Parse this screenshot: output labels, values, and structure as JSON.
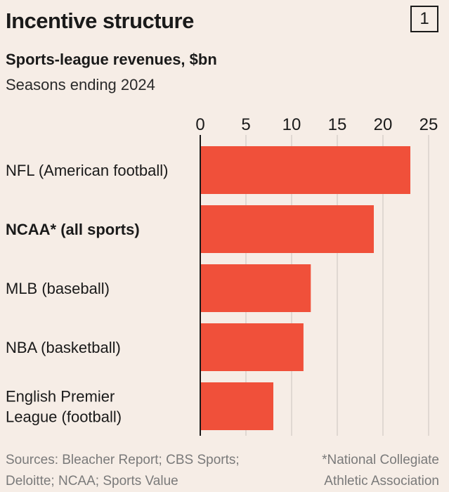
{
  "header": {
    "title": "Incentive structure",
    "badge": "1",
    "subtitle": "Sports-league revenues, $bn",
    "subsubtitle": "Seasons ending 2024"
  },
  "footer": {
    "sources_line1": "Sources: Bleacher Report; CBS Sports;",
    "sources_line2": "Deloitte; NCAA; Sports Value",
    "note_line1": "*National Collegiate",
    "note_line2": "Athletic Association"
  },
  "colors": {
    "bar": "#f0503a",
    "grid": "#c9c4bf",
    "axis": "#1a1a1a",
    "background": "#f6ede6"
  },
  "chart_data": {
    "type": "bar",
    "orientation": "horizontal",
    "categories": [
      [
        "NFL (American football)"
      ],
      [
        "NCAA* (all sports)"
      ],
      [
        "MLB (baseball)"
      ],
      [
        "NBA (basketball)"
      ],
      [
        "English Premier",
        "League (football)"
      ]
    ],
    "bold_categories": [
      1
    ],
    "values": [
      23.0,
      19.0,
      12.1,
      11.3,
      8.0
    ],
    "xlim": [
      0,
      25
    ],
    "xticks": [
      0,
      5,
      10,
      15,
      20,
      25
    ],
    "grid": true,
    "tick_position": "top"
  }
}
